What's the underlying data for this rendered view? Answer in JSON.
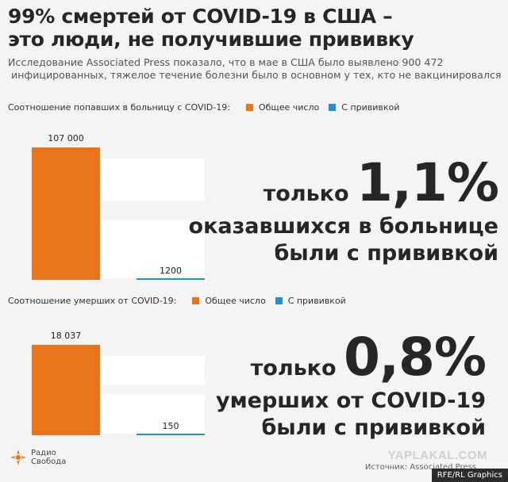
{
  "title_line1": "99% смертей от COVID-19 в США –",
  "title_line2": "это люди, не получившие прививку",
  "subtitle_line1": "Исследование Associated Press показало, что в мае в США было выявлено 900 472",
  "subtitle_line2": " инфицированных, тяжелое течение болезни было в основном у тех, кто не вакцинировался",
  "colors": {
    "total": "#e8741c",
    "vaccinated": "#1f8fd6",
    "placeholder": "#ffffff"
  },
  "chart_data": [
    {
      "type": "bar",
      "title": "Соотношение попавших в больницу с COVID-19:",
      "legend": [
        "Общее число",
        "С прививкой"
      ],
      "series": [
        {
          "name": "Общее число",
          "values": [
            107000
          ]
        },
        {
          "name": "С прививкой",
          "values": [
            1200
          ]
        }
      ],
      "value_labels": [
        "107 000",
        "1200"
      ]
    },
    {
      "type": "bar",
      "title": "Соотношение умерших от COVID-19:",
      "legend": [
        "Общее число",
        "С прививкой"
      ],
      "series": [
        {
          "name": "Общее число",
          "values": [
            18037
          ]
        },
        {
          "name": "С прививкой",
          "values": [
            150
          ]
        }
      ],
      "value_labels": [
        "18 037",
        "150"
      ]
    }
  ],
  "callout1": {
    "prefix": "только ",
    "pct": "1,1%",
    "line2": "оказавшихся в больнице",
    "line3": "были с прививкой"
  },
  "callout2": {
    "prefix": "только ",
    "pct": "0,8%",
    "line2": "умерших от COVID-19",
    "line3": "были с прививкой"
  },
  "logo": {
    "line1": "Радио",
    "line2": "Свобода"
  },
  "watermark": "YAPLAKAL.COM",
  "source": "Источник: Associated Press",
  "credit": "RFE/RL Graphics"
}
